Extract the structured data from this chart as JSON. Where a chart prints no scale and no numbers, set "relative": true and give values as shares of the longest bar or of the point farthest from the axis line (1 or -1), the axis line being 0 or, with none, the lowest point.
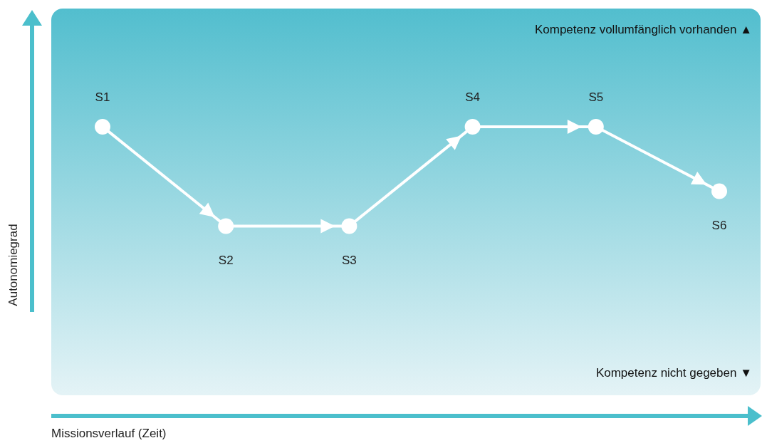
{
  "chart_data": {
    "type": "line",
    "relative": true,
    "marker": "circle",
    "xlabel": "Missionsverlauf (Zeit)",
    "ylabel": "Autonomiegrad",
    "categories": [
      "S1",
      "S2",
      "S3",
      "S4",
      "S5",
      "S6"
    ],
    "series": [
      {
        "color": "#ffffff",
        "values": [
          1,
          0.63,
          0.63,
          1,
          1,
          0.76
        ]
      }
    ],
    "annotations": [
      "Kompetenz vollumfänglich vorhanden ▲",
      "Kompetenz nicht gegeben ▼"
    ]
  }
}
